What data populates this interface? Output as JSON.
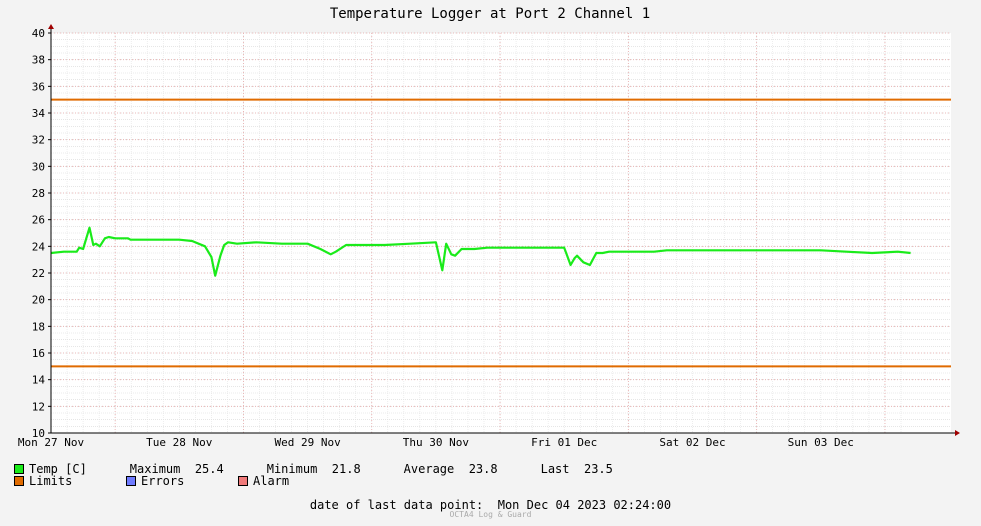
{
  "chart_data": {
    "type": "line",
    "title": "Temperature Logger at Port 2 Channel 1",
    "ylim": [
      10,
      40
    ],
    "y_ticks": [
      10,
      12,
      14,
      16,
      18,
      20,
      22,
      24,
      26,
      28,
      30,
      32,
      34,
      36,
      38,
      40
    ],
    "x_tick_labels": [
      "Mon 27 Nov",
      "Tue 28 Nov",
      "Wed 29 Nov",
      "Thu 30 Nov",
      "Fri 01 Dec",
      "Sat 02 Dec",
      "Sun 03 Dec"
    ],
    "x_range_days": [
      0,
      6.7
    ],
    "grid": true,
    "series": [
      {
        "name": "Temp [C]",
        "color": "#1aeb1a",
        "x": [
          0.0,
          0.1,
          0.2,
          0.22,
          0.25,
          0.3,
          0.33,
          0.35,
          0.38,
          0.42,
          0.45,
          0.5,
          0.55,
          0.6,
          0.62,
          0.7,
          0.8,
          1.0,
          1.1,
          1.2,
          1.25,
          1.28,
          1.32,
          1.35,
          1.38,
          1.45,
          1.6,
          1.8,
          2.0,
          2.1,
          2.18,
          2.22,
          2.3,
          2.4,
          2.6,
          2.8,
          3.0,
          3.05,
          3.08,
          3.12,
          3.15,
          3.2,
          3.25,
          3.3,
          3.4,
          3.6,
          3.8,
          4.0,
          4.05,
          4.08,
          4.1,
          4.15,
          4.2,
          4.25,
          4.3,
          4.35,
          4.5,
          4.7,
          4.8,
          4.9,
          5.0,
          5.2,
          5.4,
          5.6,
          5.8,
          6.0,
          6.2,
          6.4,
          6.6,
          6.7
        ],
        "y": [
          23.5,
          23.6,
          23.6,
          23.9,
          23.8,
          25.4,
          24.1,
          24.2,
          24.0,
          24.6,
          24.7,
          24.6,
          24.6,
          24.6,
          24.5,
          24.5,
          24.5,
          24.5,
          24.4,
          24.0,
          23.2,
          21.8,
          23.3,
          24.1,
          24.3,
          24.2,
          24.3,
          24.2,
          24.2,
          23.8,
          23.4,
          23.6,
          24.1,
          24.1,
          24.1,
          24.2,
          24.3,
          22.2,
          24.2,
          23.4,
          23.3,
          23.8,
          23.8,
          23.8,
          23.9,
          23.9,
          23.9,
          23.9,
          22.6,
          23.1,
          23.3,
          22.8,
          22.6,
          23.5,
          23.5,
          23.6,
          23.6,
          23.6,
          23.7,
          23.7,
          23.7,
          23.7,
          23.7,
          23.7,
          23.7,
          23.7,
          23.6,
          23.5,
          23.6,
          23.5
        ]
      },
      {
        "name": "Limits",
        "color": "#e06b00",
        "values": [
          35,
          15
        ]
      }
    ]
  },
  "legend": {
    "temp_label": "Temp [C]",
    "max_label": "Maximum",
    "max_value": "25.4",
    "min_label": "Minimum",
    "min_value": "21.8",
    "avg_label": "Average",
    "avg_value": "23.8",
    "last_label": "Last",
    "last_value": "23.5",
    "limits_label": "Limits",
    "errors_label": "Errors",
    "alarm_label": "Alarm",
    "temp_color": "#1aeb1a",
    "limits_color": "#e06b00",
    "errors_color": "#6f7bff",
    "alarm_color": "#f07a7a"
  },
  "footer": {
    "last_point_label": "date of last data point:",
    "last_point_value": "Mon Dec 04 2023 02:24:00",
    "watermark": "OCTA4 Log & Guard"
  }
}
